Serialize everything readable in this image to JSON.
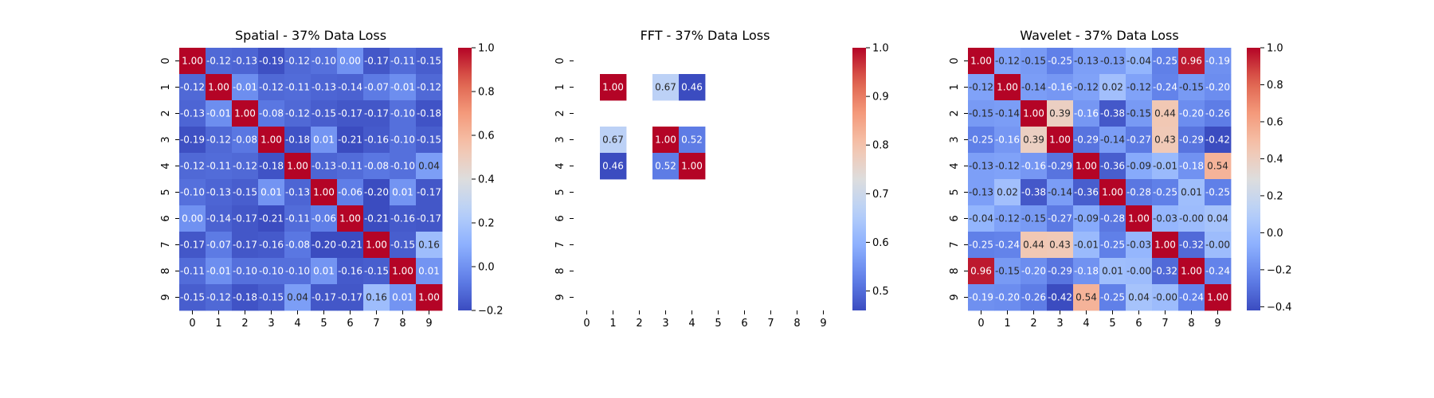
{
  "chart_data": [
    {
      "type": "heatmap",
      "title": "Spatial - 37% Data Loss",
      "x_ticks": [
        "0",
        "1",
        "2",
        "3",
        "4",
        "5",
        "6",
        "7",
        "8",
        "9"
      ],
      "y_ticks": [
        "0",
        "1",
        "2",
        "3",
        "4",
        "5",
        "6",
        "7",
        "8",
        "9"
      ],
      "colormap": "coolwarm",
      "vmin": -0.2,
      "vmax": 1.0,
      "colorbar_ticks": [
        "−0.2",
        "0.0",
        "0.2",
        "0.4",
        "0.6",
        "0.8",
        "1.0"
      ],
      "colorbar_tick_values": [
        -0.2,
        0.0,
        0.2,
        0.4,
        0.6,
        0.8,
        1.0
      ],
      "values": [
        [
          1.0,
          -0.12,
          -0.13,
          -0.19,
          -0.12,
          -0.1,
          0.0,
          -0.17,
          -0.11,
          -0.15
        ],
        [
          -0.12,
          1.0,
          -0.01,
          -0.12,
          -0.11,
          -0.13,
          -0.14,
          -0.07,
          -0.01,
          -0.12
        ],
        [
          -0.13,
          -0.01,
          1.0,
          -0.08,
          -0.12,
          -0.15,
          -0.17,
          -0.17,
          -0.1,
          -0.18
        ],
        [
          -0.19,
          -0.12,
          -0.08,
          1.0,
          -0.18,
          0.01,
          -0.21,
          -0.16,
          -0.1,
          -0.15
        ],
        [
          -0.12,
          -0.11,
          -0.12,
          -0.18,
          1.0,
          -0.13,
          -0.11,
          -0.08,
          -0.1,
          0.04
        ],
        [
          -0.1,
          -0.13,
          -0.15,
          0.01,
          -0.13,
          1.0,
          -0.06,
          -0.2,
          0.01,
          -0.17
        ],
        [
          0.0,
          -0.14,
          -0.17,
          -0.21,
          -0.11,
          -0.06,
          1.0,
          -0.21,
          -0.16,
          -0.17
        ],
        [
          -0.17,
          -0.07,
          -0.17,
          -0.16,
          -0.08,
          -0.2,
          -0.21,
          1.0,
          -0.15,
          0.16
        ],
        [
          -0.11,
          -0.01,
          -0.1,
          -0.1,
          -0.1,
          0.01,
          -0.16,
          -0.15,
          1.0,
          0.01
        ],
        [
          -0.15,
          -0.12,
          -0.18,
          -0.15,
          0.04,
          -0.17,
          -0.17,
          0.16,
          0.01,
          1.0
        ]
      ],
      "labels": [
        [
          "1.00",
          "-0.12",
          "-0.13",
          "-0.19",
          "-0.12",
          "-0.10",
          "0.00",
          "-0.17",
          "-0.11",
          "-0.15"
        ],
        [
          "-0.12",
          "1.00",
          "-0.01",
          "-0.12",
          "-0.11",
          "-0.13",
          "-0.14",
          "-0.07",
          "-0.01",
          "-0.12"
        ],
        [
          "-0.13",
          "-0.01",
          "1.00",
          "-0.08",
          "-0.12",
          "-0.15",
          "-0.17",
          "-0.17",
          "-0.10",
          "-0.18"
        ],
        [
          "-0.19",
          "-0.12",
          "-0.08",
          "1.00",
          "-0.18",
          "0.01",
          "-0.21",
          "-0.16",
          "-0.10",
          "-0.15"
        ],
        [
          "-0.12",
          "-0.11",
          "-0.12",
          "-0.18",
          "1.00",
          "-0.13",
          "-0.11",
          "-0.08",
          "-0.10",
          "0.04"
        ],
        [
          "-0.10",
          "-0.13",
          "-0.15",
          "0.01",
          "-0.13",
          "1.00",
          "-0.06",
          "-0.20",
          "0.01",
          "-0.17"
        ],
        [
          "0.00",
          "-0.14",
          "-0.17",
          "-0.21",
          "-0.11",
          "-0.06",
          "1.00",
          "-0.21",
          "-0.16",
          "-0.17"
        ],
        [
          "-0.17",
          "-0.07",
          "-0.17",
          "-0.16",
          "-0.08",
          "-0.20",
          "-0.21",
          "1.00",
          "-0.15",
          "0.16"
        ],
        [
          "-0.11",
          "-0.01",
          "-0.10",
          "-0.10",
          "-0.10",
          "0.01",
          "-0.16",
          "-0.15",
          "1.00",
          "0.01"
        ],
        [
          "-0.15",
          "-0.12",
          "-0.18",
          "-0.15",
          "0.04",
          "-0.17",
          "-0.17",
          "0.16",
          "0.01",
          "1.00"
        ]
      ]
    },
    {
      "type": "heatmap",
      "title": "FFT - 37% Data Loss",
      "x_ticks": [
        "0",
        "1",
        "2",
        "3",
        "4",
        "5",
        "6",
        "7",
        "8",
        "9"
      ],
      "y_ticks": [
        "0",
        "1",
        "2",
        "3",
        "4",
        "5",
        "6",
        "7",
        "8",
        "9"
      ],
      "colormap": "coolwarm",
      "vmin": 0.46,
      "vmax": 1.0,
      "colorbar_ticks": [
        "0.5",
        "0.6",
        "0.7",
        "0.8",
        "0.9",
        "1.0"
      ],
      "colorbar_tick_values": [
        0.5,
        0.6,
        0.7,
        0.8,
        0.9,
        1.0
      ],
      "values": [
        [
          null,
          null,
          null,
          null,
          null,
          null,
          null,
          null,
          null,
          null
        ],
        [
          null,
          1.0,
          null,
          0.67,
          0.46,
          null,
          null,
          null,
          null,
          null
        ],
        [
          null,
          null,
          null,
          null,
          null,
          null,
          null,
          null,
          null,
          null
        ],
        [
          null,
          0.67,
          null,
          1.0,
          0.52,
          null,
          null,
          null,
          null,
          null
        ],
        [
          null,
          0.46,
          null,
          0.52,
          1.0,
          null,
          null,
          null,
          null,
          null
        ],
        [
          null,
          null,
          null,
          null,
          null,
          null,
          null,
          null,
          null,
          null
        ],
        [
          null,
          null,
          null,
          null,
          null,
          null,
          null,
          null,
          null,
          null
        ],
        [
          null,
          null,
          null,
          null,
          null,
          null,
          null,
          null,
          null,
          null
        ],
        [
          null,
          null,
          null,
          null,
          null,
          null,
          null,
          null,
          null,
          null
        ],
        [
          null,
          null,
          null,
          null,
          null,
          null,
          null,
          null,
          null,
          null
        ]
      ],
      "labels": [
        [
          null,
          null,
          null,
          null,
          null,
          null,
          null,
          null,
          null,
          null
        ],
        [
          null,
          "1.00",
          null,
          "0.67",
          "0.46",
          null,
          null,
          null,
          null,
          null
        ],
        [
          null,
          null,
          null,
          null,
          null,
          null,
          null,
          null,
          null,
          null
        ],
        [
          null,
          "0.67",
          null,
          "1.00",
          "0.52",
          null,
          null,
          null,
          null,
          null
        ],
        [
          null,
          "0.46",
          null,
          "0.52",
          "1.00",
          null,
          null,
          null,
          null,
          null
        ],
        [
          null,
          null,
          null,
          null,
          null,
          null,
          null,
          null,
          null,
          null
        ],
        [
          null,
          null,
          null,
          null,
          null,
          null,
          null,
          null,
          null,
          null
        ],
        [
          null,
          null,
          null,
          null,
          null,
          null,
          null,
          null,
          null,
          null
        ],
        [
          null,
          null,
          null,
          null,
          null,
          null,
          null,
          null,
          null,
          null
        ],
        [
          null,
          null,
          null,
          null,
          null,
          null,
          null,
          null,
          null,
          null
        ]
      ]
    },
    {
      "type": "heatmap",
      "title": "Wavelet - 37% Data Loss",
      "x_ticks": [
        "0",
        "1",
        "2",
        "3",
        "4",
        "5",
        "6",
        "7",
        "8",
        "9"
      ],
      "y_ticks": [
        "0",
        "1",
        "2",
        "3",
        "4",
        "5",
        "6",
        "7",
        "8",
        "9"
      ],
      "colormap": "coolwarm",
      "vmin": -0.42,
      "vmax": 1.0,
      "colorbar_ticks": [
        "−0.4",
        "−0.2",
        "0.0",
        "0.2",
        "0.4",
        "0.6",
        "0.8",
        "1.0"
      ],
      "colorbar_tick_values": [
        -0.4,
        -0.2,
        0.0,
        0.2,
        0.4,
        0.6,
        0.8,
        1.0
      ],
      "values": [
        [
          1.0,
          -0.12,
          -0.15,
          -0.25,
          -0.13,
          -0.13,
          -0.04,
          -0.25,
          0.96,
          -0.19
        ],
        [
          -0.12,
          1.0,
          -0.14,
          -0.16,
          -0.12,
          0.02,
          -0.12,
          -0.24,
          -0.15,
          -0.2
        ],
        [
          -0.15,
          -0.14,
          1.0,
          0.39,
          -0.16,
          -0.38,
          -0.15,
          0.44,
          -0.2,
          -0.26
        ],
        [
          -0.25,
          -0.16,
          0.39,
          1.0,
          -0.29,
          -0.14,
          -0.27,
          0.43,
          -0.29,
          -0.42
        ],
        [
          -0.13,
          -0.12,
          -0.16,
          -0.29,
          1.0,
          -0.36,
          -0.09,
          -0.01,
          -0.18,
          0.54
        ],
        [
          -0.13,
          0.02,
          -0.38,
          -0.14,
          -0.36,
          1.0,
          -0.28,
          -0.25,
          0.01,
          -0.25
        ],
        [
          -0.04,
          -0.12,
          -0.15,
          -0.27,
          -0.09,
          -0.28,
          1.0,
          -0.03,
          -0.0,
          0.04
        ],
        [
          -0.25,
          -0.24,
          0.44,
          0.43,
          -0.01,
          -0.25,
          -0.03,
          1.0,
          -0.32,
          -0.0
        ],
        [
          0.96,
          -0.15,
          -0.2,
          -0.29,
          -0.18,
          0.01,
          -0.0,
          -0.32,
          1.0,
          -0.24
        ],
        [
          -0.19,
          -0.2,
          -0.26,
          -0.42,
          0.54,
          -0.25,
          0.04,
          -0.0,
          -0.24,
          1.0
        ]
      ],
      "labels": [
        [
          "1.00",
          "-0.12",
          "-0.15",
          "-0.25",
          "-0.13",
          "-0.13",
          "-0.04",
          "-0.25",
          "0.96",
          "-0.19"
        ],
        [
          "-0.12",
          "1.00",
          "-0.14",
          "-0.16",
          "-0.12",
          "0.02",
          "-0.12",
          "-0.24",
          "-0.15",
          "-0.20"
        ],
        [
          "-0.15",
          "-0.14",
          "1.00",
          "0.39",
          "-0.16",
          "-0.38",
          "-0.15",
          "0.44",
          "-0.20",
          "-0.26"
        ],
        [
          "-0.25",
          "-0.16",
          "0.39",
          "1.00",
          "-0.29",
          "-0.14",
          "-0.27",
          "0.43",
          "-0.29",
          "-0.42"
        ],
        [
          "-0.13",
          "-0.12",
          "-0.16",
          "-0.29",
          "1.00",
          "-0.36",
          "-0.09",
          "-0.01",
          "-0.18",
          "0.54"
        ],
        [
          "-0.13",
          "0.02",
          "-0.38",
          "-0.14",
          "-0.36",
          "1.00",
          "-0.28",
          "-0.25",
          "0.01",
          "-0.25"
        ],
        [
          "-0.04",
          "-0.12",
          "-0.15",
          "-0.27",
          "-0.09",
          "-0.28",
          "1.00",
          "-0.03",
          "-0.00",
          "0.04"
        ],
        [
          "-0.25",
          "-0.24",
          "0.44",
          "0.43",
          "-0.01",
          "-0.25",
          "-0.03",
          "1.00",
          "-0.32",
          "-0.00"
        ],
        [
          "0.96",
          "-0.15",
          "-0.20",
          "-0.29",
          "-0.18",
          "0.01",
          "-0.00",
          "-0.32",
          "1.00",
          "-0.24"
        ],
        [
          "-0.19",
          "-0.20",
          "-0.26",
          "-0.42",
          "0.54",
          "-0.25",
          "0.04",
          "-0.00",
          "-0.24",
          "1.00"
        ]
      ]
    }
  ]
}
